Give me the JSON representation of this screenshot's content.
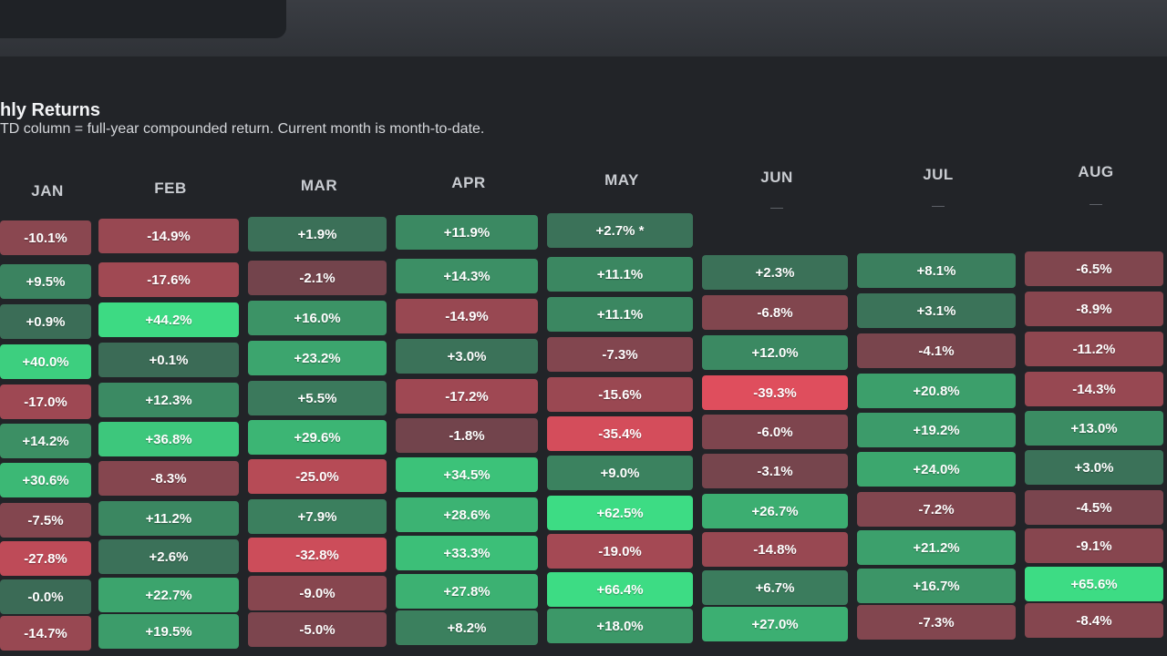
{
  "panel": {
    "title": "hly Returns",
    "subtitle": "TD column = full-year compounded return. Current month is month-to-date."
  },
  "months": [
    "JAN",
    "FEB",
    "MAR",
    "APR",
    "MAY",
    "JUN",
    "JUL",
    "AUG"
  ],
  "rows": [
    [
      "-10.1%",
      "-14.9%",
      "+1.9%",
      "+11.9%",
      "+2.7% *",
      "—",
      "—",
      "—"
    ],
    [
      "+9.5%",
      "-17.6%",
      "-2.1%",
      "+14.3%",
      "+11.1%",
      "+2.3%",
      "+8.1%",
      "-6.5%"
    ],
    [
      "+0.9%",
      "+44.2%",
      "+16.0%",
      "-14.9%",
      "+11.1%",
      "-6.8%",
      "+3.1%",
      "-8.9%"
    ],
    [
      "+40.0%",
      "+0.1%",
      "+23.2%",
      "+3.0%",
      "-7.3%",
      "+12.0%",
      "-4.1%",
      "-11.2%"
    ],
    [
      "-17.0%",
      "+12.3%",
      "+5.5%",
      "-17.2%",
      "-15.6%",
      "-39.3%",
      "+20.8%",
      "-14.3%"
    ],
    [
      "+14.2%",
      "+36.8%",
      "+29.6%",
      "-1.8%",
      "-35.4%",
      "-6.0%",
      "+19.2%",
      "+13.0%"
    ],
    [
      "+30.6%",
      "-8.3%",
      "-25.0%",
      "+34.5%",
      "+9.0%",
      "-3.1%",
      "+24.0%",
      "+3.0%"
    ],
    [
      "-7.5%",
      "+11.2%",
      "+7.9%",
      "+28.6%",
      "+62.5%",
      "+26.7%",
      "-7.2%",
      "-4.5%"
    ],
    [
      "-27.8%",
      "+2.6%",
      "-32.8%",
      "+33.3%",
      "-19.0%",
      "-14.8%",
      "+21.2%",
      "-9.1%"
    ],
    [
      "-0.0%",
      "+22.7%",
      "-9.0%",
      "+27.8%",
      "+66.4%",
      "+6.7%",
      "+16.7%",
      "+65.6%"
    ],
    [
      "-14.7%",
      "+19.5%",
      "-5.0%",
      "+8.2%",
      "+18.0%",
      "+27.0%",
      "-7.3%",
      "-8.4%"
    ]
  ],
  "colors": {
    "background": "#1c1e22",
    "positive_max": "#3ddc84",
    "negative_max": "#f0505f",
    "neutral": "#3a3f44"
  }
}
